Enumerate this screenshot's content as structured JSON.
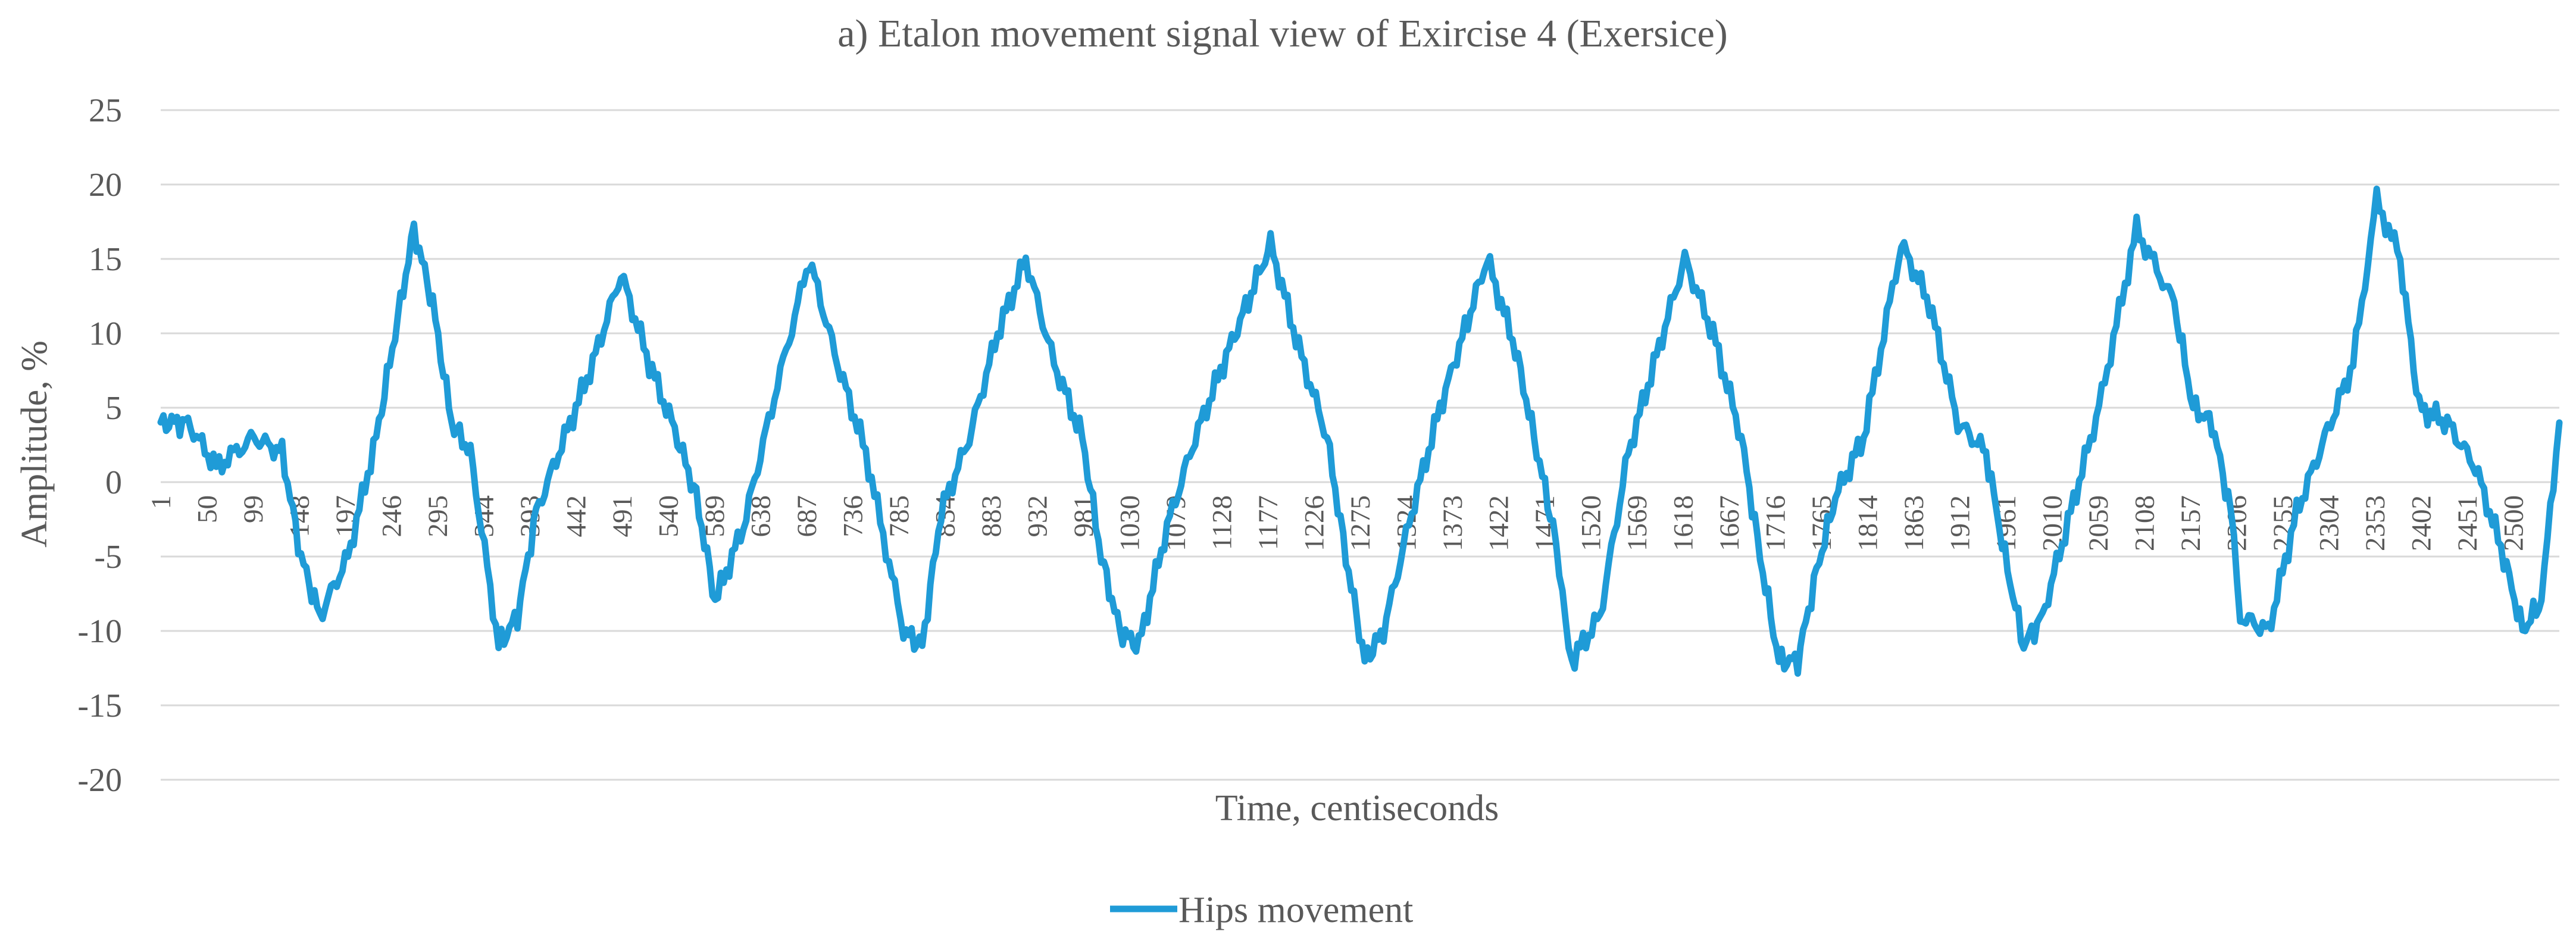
{
  "chart_data": {
    "type": "line",
    "title": "a) Etalon movement signal view of Exircise 4 (Exersice)",
    "xlabel": "Time, centiseconds",
    "ylabel": "Amplitude, %",
    "ylim": [
      -20,
      25
    ],
    "yticks": [
      25,
      20,
      15,
      10,
      5,
      0,
      -5,
      -10,
      -15,
      -20
    ],
    "xlim": [
      1,
      2549
    ],
    "x_tick_labels": [
      "1",
      "50",
      "99",
      "148",
      "197",
      "246",
      "295",
      "344",
      "393",
      "442",
      "491",
      "540",
      "589",
      "638",
      "687",
      "736",
      "785",
      "834",
      "883",
      "932",
      "981",
      "1030",
      "1079",
      "1128",
      "1177",
      "1226",
      "1275",
      "1324",
      "1373",
      "1422",
      "1471",
      "1520",
      "1569",
      "1618",
      "1667",
      "1716",
      "1765",
      "1814",
      "1863",
      "1912",
      "1961",
      "2010",
      "2059",
      "2108",
      "2157",
      "2206",
      "2255",
      "2304",
      "2353",
      "2402",
      "2451",
      "2500"
    ],
    "grid": true,
    "legend_position": "bottom",
    "color": "#1f9bd7",
    "series": [
      {
        "name": "Hips movement",
        "x": [
          1,
          30,
          60,
          100,
          130,
          150,
          170,
          200,
          230,
          250,
          270,
          290,
          310,
          330,
          360,
          380,
          400,
          430,
          460,
          490,
          520,
          550,
          570,
          590,
          620,
          650,
          690,
          720,
          750,
          790,
          810,
          830,
          860,
          890,
          920,
          950,
          980,
          1000,
          1020,
          1040,
          1070,
          1100,
          1130,
          1180,
          1210,
          1240,
          1260,
          1280,
          1300,
          1330,
          1360,
          1410,
          1440,
          1460,
          1480,
          1490,
          1500,
          1530,
          1560,
          1620,
          1650,
          1680,
          1700,
          1720,
          1740,
          1760,
          1780,
          1810,
          1850,
          1880,
          1910,
          1940,
          1960,
          1980,
          2000,
          2030,
          2060,
          2100,
          2140,
          2160,
          2180,
          2200,
          2210,
          2240,
          2270,
          2300,
          2330,
          2355,
          2380,
          2400,
          2430,
          2460,
          2490,
          2510,
          2530,
          2549
        ],
        "y": [
          4,
          4,
          1,
          3,
          2,
          -5,
          -9,
          -5,
          3,
          10,
          17,
          12,
          4,
          2,
          -11,
          -9,
          -2,
          3,
          8,
          14,
          8,
          3,
          -1,
          -8,
          -3,
          5,
          15,
          8,
          2,
          -10,
          -11,
          -2,
          3,
          10,
          15,
          8,
          3,
          -5,
          -10,
          -11,
          -3,
          3,
          8,
          16,
          9,
          3,
          -5,
          -12,
          -10,
          -2,
          5,
          15,
          9,
          3,
          -3,
          -8,
          -12,
          -9,
          2,
          15,
          10,
          3,
          -5,
          -12,
          -12,
          -6,
          -1,
          3,
          16,
          12,
          4,
          2,
          -5,
          -11,
          -9,
          -2,
          5,
          17,
          12,
          5,
          4,
          -2,
          -9,
          -10,
          -2,
          3,
          8,
          19,
          15,
          5,
          4,
          1,
          -5,
          -10,
          -8,
          4
        ]
      }
    ]
  }
}
